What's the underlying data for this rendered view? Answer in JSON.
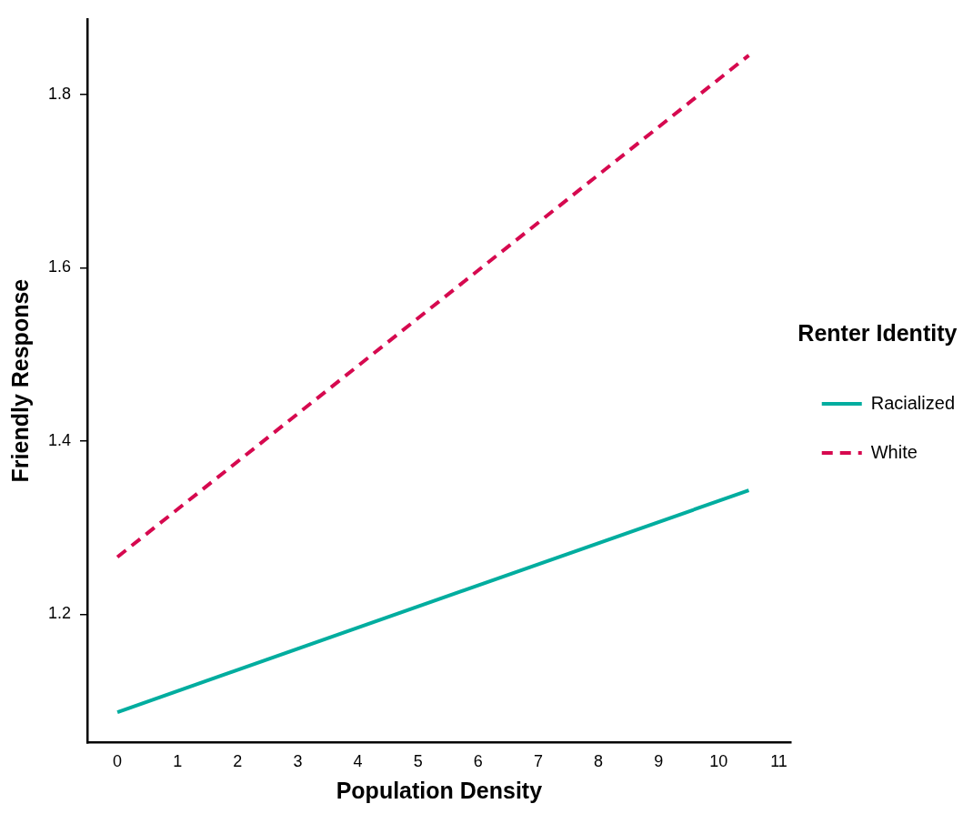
{
  "chart_data": {
    "type": "line",
    "xlabel": "Population Density",
    "ylabel": "Friendly Response",
    "legend_title": "Renter Identity",
    "legend": "right",
    "grid": false,
    "marker": "none",
    "xlim": [
      -0.5,
      11.2
    ],
    "xticks": [
      0,
      1,
      2,
      3,
      4,
      5,
      6,
      7,
      8,
      9,
      10,
      11
    ],
    "ylim": [
      1.052,
      1.887
    ],
    "yticks": [
      1.2,
      1.4,
      1.6,
      1.8
    ],
    "x": [
      0,
      10.5
    ],
    "series": [
      {
        "name": "Racialized",
        "color": "#00ad9f",
        "line_style": "solid",
        "values": [
          1.087,
          1.343
        ]
      },
      {
        "name": "White",
        "color": "#d6094f",
        "line_style": "dashed",
        "values": [
          1.266,
          1.845
        ]
      }
    ]
  }
}
